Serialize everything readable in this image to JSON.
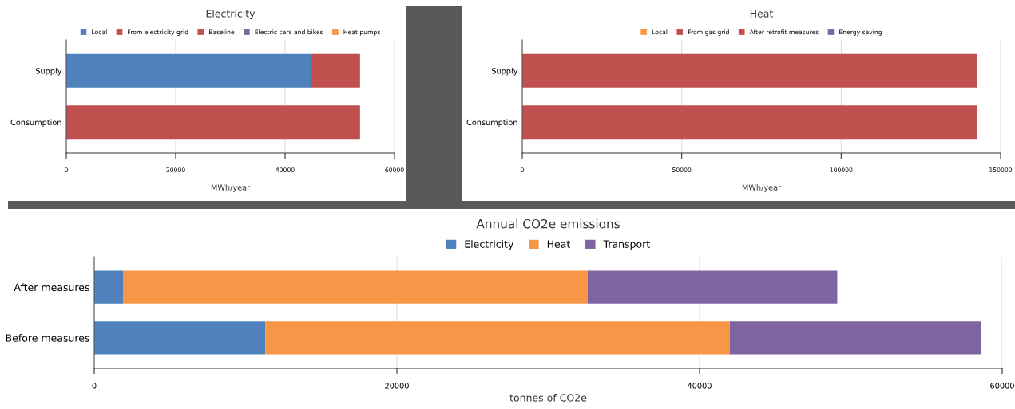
{
  "chart_data": [
    {
      "type": "bar",
      "orientation": "horizontal",
      "stacked": true,
      "title": "Electricity",
      "xlabel": "MWh/year",
      "categories": [
        "Supply",
        "Consumption"
      ],
      "xlim": [
        0,
        60000
      ],
      "xticks": [
        0,
        20000,
        40000,
        60000
      ],
      "grid": "x",
      "legend": "top",
      "series": [
        {
          "name": "Local",
          "color": "#4f81bd",
          "values": [
            44700,
            0
          ]
        },
        {
          "name": "From electricity grid",
          "color": "#c0504d",
          "values": [
            9000,
            0
          ]
        },
        {
          "name": "Baseline",
          "color": "#c0504d",
          "values": [
            0,
            53700
          ]
        },
        {
          "name": "Electric cars and bikes",
          "color": "#8064a2",
          "values": [
            0,
            0
          ]
        },
        {
          "name": "Heat pumps",
          "color": "#f79646",
          "values": [
            0,
            0
          ]
        }
      ]
    },
    {
      "type": "bar",
      "orientation": "horizontal",
      "stacked": true,
      "title": "Heat",
      "xlabel": "MWh/year",
      "categories": [
        "Supply",
        "Consumption"
      ],
      "xlim": [
        0,
        150000
      ],
      "xticks": [
        0,
        50000,
        100000,
        150000
      ],
      "grid": "x",
      "legend": "top",
      "series": [
        {
          "name": "Local",
          "color": "#f79646",
          "values": [
            0,
            0
          ]
        },
        {
          "name": "From gas grid",
          "color": "#c0504d",
          "values": [
            142500,
            0
          ]
        },
        {
          "name": "After retrofit measures",
          "color": "#c0504d",
          "values": [
            0,
            142500
          ]
        },
        {
          "name": "Energy saving",
          "color": "#8064a2",
          "values": [
            0,
            0
          ]
        }
      ]
    },
    {
      "type": "bar",
      "orientation": "horizontal",
      "stacked": true,
      "title": "Annual CO2e emissions",
      "xlabel": "tonnes of CO2e",
      "categories": [
        "After measures",
        "Before measures"
      ],
      "xlim": [
        0,
        60000
      ],
      "xticks": [
        0,
        20000,
        40000,
        60000
      ],
      "grid": "x",
      "legend": "top",
      "series": [
        {
          "name": "Electricity",
          "color": "#4f81bd",
          "values": [
            1900,
            11300
          ]
        },
        {
          "name": "Heat",
          "color": "#f79646",
          "values": [
            30700,
            30700
          ]
        },
        {
          "name": "Transport",
          "color": "#8064a2",
          "values": [
            16500,
            16600
          ]
        }
      ]
    }
  ]
}
